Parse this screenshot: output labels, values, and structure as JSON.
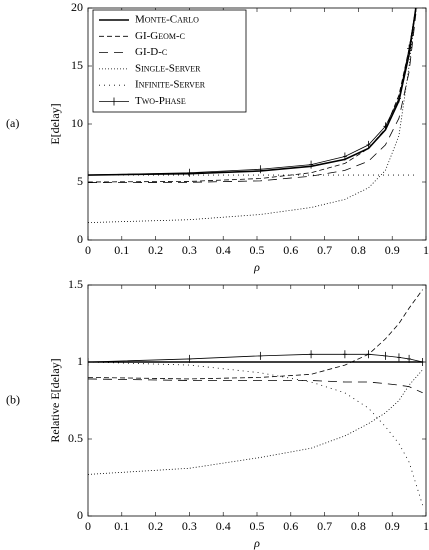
{
  "chart_data": [
    {
      "type": "line",
      "panel_label": "(a)",
      "ylabel": "E[delay]",
      "xlabel": "ρ",
      "xlim": [
        0,
        1
      ],
      "ylim": [
        0,
        20
      ],
      "xticks": [
        0,
        0.1,
        0.2,
        0.3,
        0.4,
        0.5,
        0.6,
        0.7,
        0.8,
        0.9,
        1
      ],
      "yticks": [
        0,
        5,
        10,
        15,
        20
      ],
      "legend": "upper left",
      "x": [
        0,
        0.3,
        0.51,
        0.66,
        0.76,
        0.83,
        0.88,
        0.92,
        0.95,
        0.97
      ],
      "series": [
        {
          "name": "Monte-Carlo",
          "color": "#000000",
          "dash": "solid",
          "width": 1.6,
          "values": [
            5.6,
            5.72,
            5.95,
            6.35,
            6.95,
            7.9,
            9.5,
            12,
            16,
            20
          ]
        },
        {
          "name": "GI-Geom-c",
          "color": "#000000",
          "dash": "dashed",
          "width": 0.8,
          "values": [
            5.0,
            5.05,
            5.3,
            5.8,
            6.6,
            7.9,
            9.6,
            12.5,
            16.5,
            20
          ]
        },
        {
          "name": "GI-D-c",
          "color": "#000000",
          "dash": "long-dashed",
          "width": 0.8,
          "values": [
            4.95,
            4.97,
            5.1,
            5.5,
            6.0,
            6.8,
            8.2,
            10.5,
            14.5,
            19.5
          ]
        },
        {
          "name": "Single-Server",
          "color": "#000000",
          "dash": "dotted",
          "width": 0.8,
          "values": [
            1.5,
            1.75,
            2.2,
            2.8,
            3.5,
            4.5,
            6.0,
            9.0,
            15.0,
            20
          ]
        },
        {
          "name": "Infinite-Server",
          "color": "#000000",
          "dash": "loosely-dotted",
          "width": 0.8,
          "values": [
            5.6,
            5.6,
            5.6,
            5.6,
            5.6,
            5.6,
            5.6,
            5.6,
            5.6,
            5.6
          ]
        },
        {
          "name": "Two-Phase",
          "color": "#000000",
          "dash": "solid",
          "width": 0.8,
          "markers": true,
          "values": [
            5.6,
            5.8,
            6.1,
            6.5,
            7.2,
            8.2,
            9.8,
            12.2,
            16.5,
            20
          ]
        }
      ]
    },
    {
      "type": "line",
      "panel_label": "(b)",
      "ylabel": "Relative E[delay]",
      "xlabel": "ρ",
      "xlim": [
        0,
        1
      ],
      "ylim": [
        0,
        1.5
      ],
      "xticks": [
        0,
        0.1,
        0.2,
        0.3,
        0.4,
        0.5,
        0.6,
        0.7,
        0.8,
        0.9,
        1
      ],
      "yticks": [
        0,
        0.5,
        1,
        1.5
      ],
      "x": [
        0,
        0.3,
        0.51,
        0.66,
        0.76,
        0.83,
        0.88,
        0.92,
        0.95,
        0.99
      ],
      "series": [
        {
          "color": "#000000",
          "dash": "solid",
          "width": 1.6,
          "values": [
            1,
            1,
            1,
            1,
            1,
            1,
            1,
            1,
            1,
            1
          ]
        },
        {
          "color": "#000000",
          "dash": "dashed",
          "width": 0.8,
          "values": [
            0.9,
            0.89,
            0.9,
            0.92,
            0.98,
            1.05,
            1.15,
            1.25,
            1.35,
            1.47
          ]
        },
        {
          "color": "#000000",
          "dash": "long-dashed",
          "width": 0.8,
          "values": [
            0.89,
            0.88,
            0.88,
            0.88,
            0.87,
            0.87,
            0.86,
            0.85,
            0.84,
            0.8
          ]
        },
        {
          "color": "#000000",
          "dash": "dotted",
          "width": 0.8,
          "values": [
            0.27,
            0.31,
            0.38,
            0.44,
            0.52,
            0.6,
            0.67,
            0.75,
            0.85,
            0.95
          ]
        },
        {
          "color": "#000000",
          "dash": "loosely-dotted",
          "width": 0.8,
          "values": [
            1.0,
            0.98,
            0.93,
            0.87,
            0.8,
            0.7,
            0.58,
            0.47,
            0.35,
            0.07
          ]
        },
        {
          "color": "#000000",
          "dash": "solid",
          "width": 0.8,
          "markers": true,
          "values": [
            1.0,
            1.02,
            1.04,
            1.05,
            1.05,
            1.05,
            1.04,
            1.03,
            1.02,
            1.0
          ]
        }
      ]
    }
  ]
}
